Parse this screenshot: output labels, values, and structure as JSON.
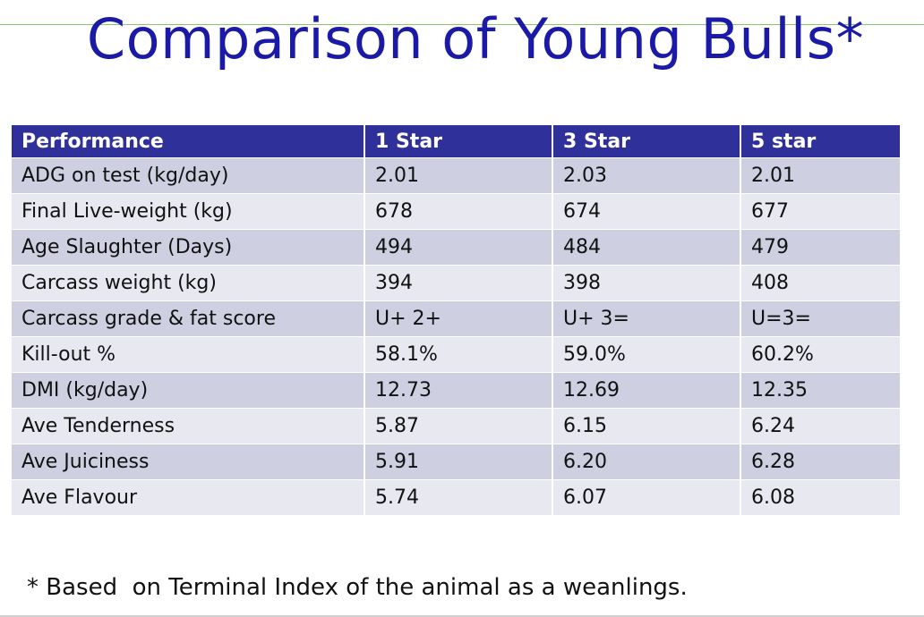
{
  "slide": {
    "title": "Comparison of Young Bulls*",
    "footnote": "* Based  on Terminal Index of the animal as a weanlings."
  },
  "table": {
    "headers": [
      "Performance",
      "1 Star",
      "3 Star",
      "5 star"
    ],
    "rows": [
      [
        "ADG on test (kg/day)",
        "2.01",
        "2.03",
        "2.01"
      ],
      [
        "Final Live-weight (kg)",
        "678",
        "674",
        "677"
      ],
      [
        "Age Slaughter (Days)",
        "494",
        "484",
        "479"
      ],
      [
        "Carcass weight (kg)",
        "394",
        "398",
        "408"
      ],
      [
        "Carcass grade & fat score",
        "U+ 2+",
        "U+ 3=",
        "U=3="
      ],
      [
        "Kill-out %",
        "58.1%",
        "59.0%",
        "60.2%"
      ],
      [
        "DMI (kg/day)",
        "12.73",
        "12.69",
        "12.35"
      ],
      [
        "Ave Tenderness",
        "5.87",
        "6.15",
        "6.24"
      ],
      [
        "Ave Juiciness",
        "5.91",
        "6.20",
        "6.28"
      ],
      [
        "Ave Flavour",
        "5.74",
        "6.07",
        "6.08"
      ]
    ]
  },
  "colors": {
    "title": "#1a1aa6",
    "header_bg": "#30309a",
    "row_dark": "#cfcfe2",
    "row_light": "#e8e8f1"
  }
}
